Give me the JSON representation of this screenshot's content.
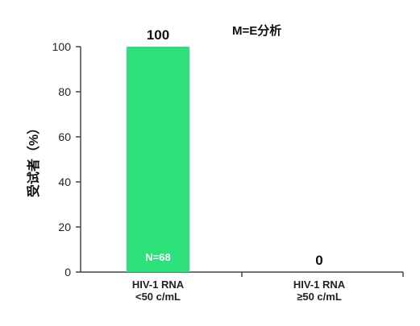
{
  "chart_data": {
    "type": "bar",
    "categories": [
      [
        "HIV-1 RNA",
        "<50 c/mL"
      ],
      [
        "HIV-1 RNA",
        "≥50 c/mL"
      ]
    ],
    "values": [
      100,
      0
    ],
    "data_labels": [
      "100",
      "0"
    ],
    "bar_inner_labels": [
      "N=68",
      ""
    ],
    "annotation": "M=E分析",
    "title": "",
    "xlabel": "",
    "ylabel": "受试者（%）",
    "ylim": [
      0,
      100
    ],
    "yticks": [
      0,
      20,
      40,
      60,
      80,
      100
    ],
    "grid": false,
    "legend": "none",
    "bar_color": "#2ee07a",
    "axis_color": "#444444"
  }
}
